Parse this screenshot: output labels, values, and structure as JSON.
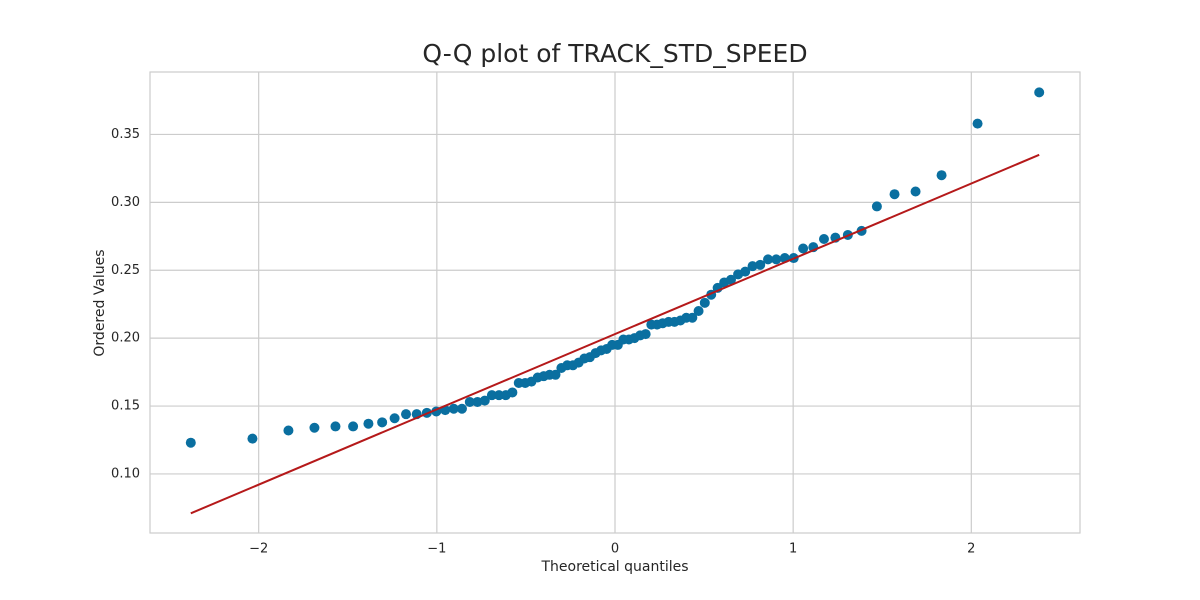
{
  "chart_data": {
    "type": "scatter",
    "title": "Q-Q plot of TRACK_STD_SPEED",
    "x_label": "Theoretical quantiles",
    "y_label": "Ordered Values",
    "xlim": [
      -2.61,
      2.61
    ],
    "ylim": [
      0.0565,
      0.396
    ],
    "xticks": [
      {
        "value": -2,
        "label": "−2"
      },
      {
        "value": -1,
        "label": "−1"
      },
      0,
      1,
      2
    ],
    "yticks": [
      {
        "value": 0.1,
        "label": "0.10"
      },
      0.15,
      {
        "value": 0.2,
        "label": "0.20"
      },
      0.25,
      {
        "value": 0.3,
        "label": "0.30"
      },
      0.35
    ],
    "grid": true,
    "series": [
      {
        "type": "scatter",
        "color": "#0a6fa0",
        "x": [
          -2.381,
          -2.035,
          -1.833,
          -1.687,
          -1.569,
          -1.47,
          -1.384,
          -1.307,
          -1.237,
          -1.173,
          -1.113,
          -1.056,
          -1.003,
          -0.953,
          -0.905,
          -0.859,
          -0.815,
          -0.772,
          -0.731,
          -0.691,
          -0.651,
          -0.613,
          -0.576,
          -0.54,
          -0.504,
          -0.469,
          -0.434,
          -0.4,
          -0.367,
          -0.334,
          -0.301,
          -0.268,
          -0.236,
          -0.204,
          -0.172,
          -0.141,
          -0.109,
          -0.078,
          -0.047,
          -0.016,
          0.016,
          0.047,
          0.078,
          0.109,
          0.141,
          0.172,
          0.204,
          0.236,
          0.268,
          0.301,
          0.334,
          0.367,
          0.4,
          0.434,
          0.469,
          0.504,
          0.54,
          0.576,
          0.613,
          0.651,
          0.691,
          0.731,
          0.772,
          0.815,
          0.859,
          0.905,
          0.953,
          1.003,
          1.056,
          1.113,
          1.173,
          1.237,
          1.307,
          1.384,
          1.47,
          1.569,
          1.687,
          1.833,
          2.035,
          2.381
        ],
        "values": [
          0.123,
          0.126,
          0.132,
          0.134,
          0.135,
          0.135,
          0.137,
          0.138,
          0.141,
          0.144,
          0.144,
          0.145,
          0.146,
          0.147,
          0.148,
          0.148,
          0.153,
          0.153,
          0.154,
          0.158,
          0.158,
          0.158,
          0.16,
          0.167,
          0.167,
          0.168,
          0.171,
          0.172,
          0.173,
          0.173,
          0.178,
          0.18,
          0.18,
          0.182,
          0.185,
          0.186,
          0.189,
          0.191,
          0.192,
          0.195,
          0.195,
          0.199,
          0.199,
          0.2,
          0.202,
          0.203,
          0.21,
          0.21,
          0.211,
          0.212,
          0.212,
          0.213,
          0.215,
          0.215,
          0.22,
          0.226,
          0.232,
          0.237,
          0.241,
          0.243,
          0.247,
          0.249,
          0.253,
          0.254,
          0.258,
          0.258,
          0.259,
          0.259,
          0.266,
          0.267,
          0.273,
          0.274,
          0.276,
          0.279,
          0.297,
          0.306,
          0.308,
          0.32,
          0.358,
          0.381
        ]
      },
      {
        "type": "line",
        "color": "#b5191a",
        "x": [
          -2.381,
          2.381
        ],
        "values": [
          0.071,
          0.335
        ]
      }
    ]
  }
}
